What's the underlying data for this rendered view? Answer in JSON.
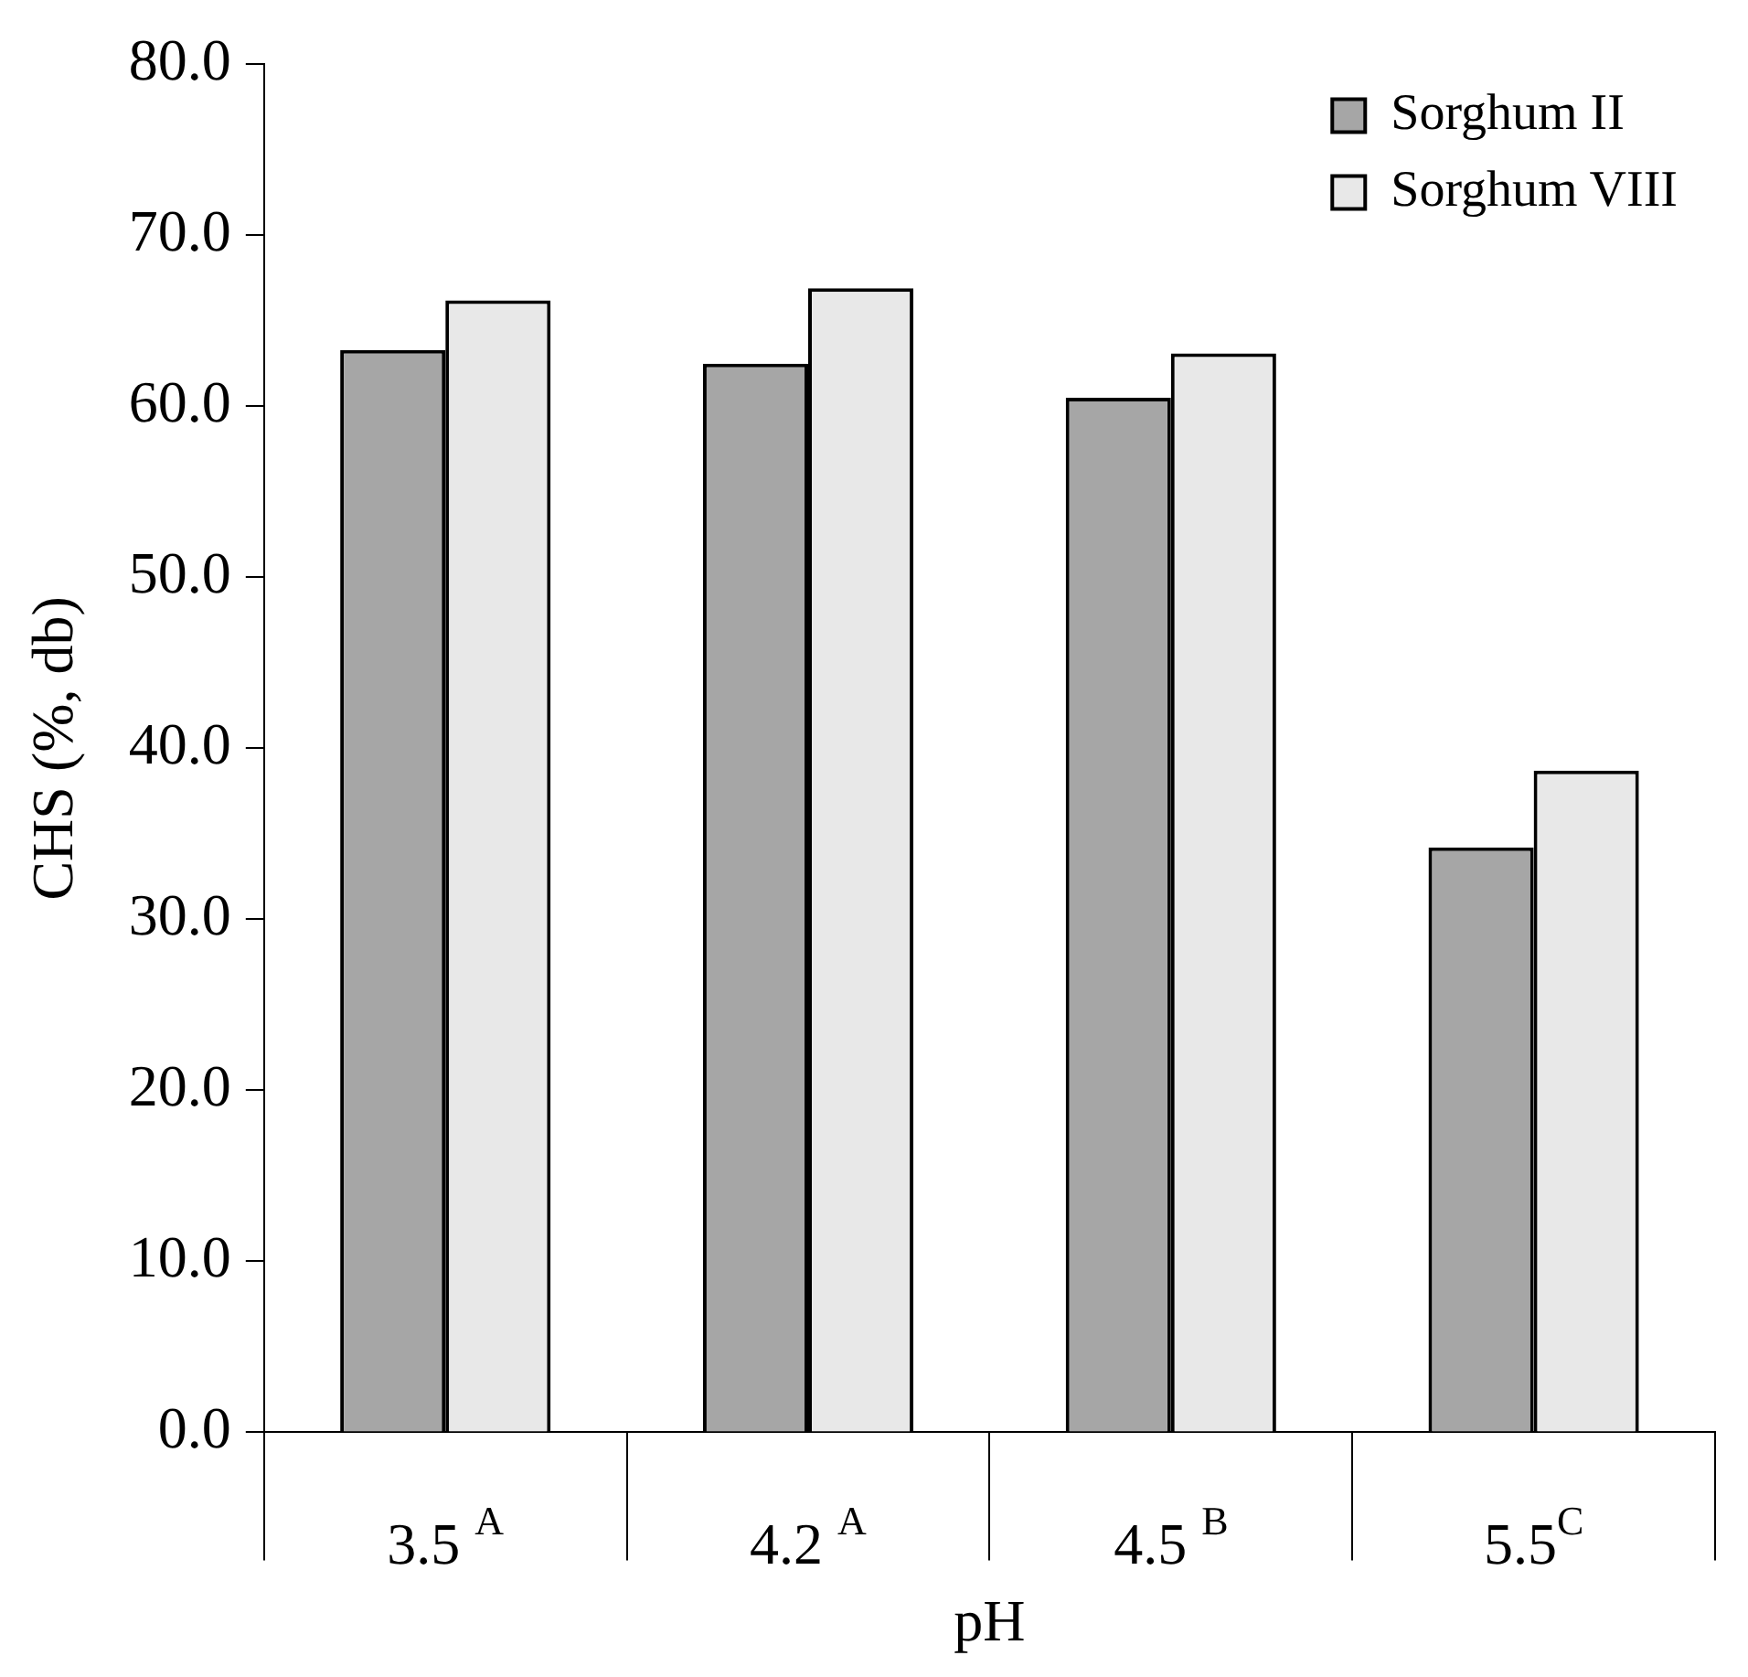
{
  "chart_data": {
    "type": "bar",
    "xlabel": "pH",
    "ylabel": "CHS (%, db)",
    "categories": [
      "3.5 $^{A}$",
      "4.2 $^{A}$",
      "4.5 $^{B}$",
      "5.5$^{C}$"
    ],
    "series": [
      {
        "name": "Sorghum II",
        "color": "#a6a6a6",
        "values": [
          63.3,
          62.5,
          60.5,
          34.2
        ]
      },
      {
        "name": "Sorghum VIII",
        "color": "#e8e8e8",
        "values": [
          66.2,
          66.9,
          63.1,
          38.7
        ]
      }
    ],
    "ylim": [
      0,
      80
    ],
    "yticks": [
      {
        "value": 0,
        "label": "0.0"
      },
      {
        "value": 10,
        "label": "10.0"
      },
      {
        "value": 20,
        "label": "20.0"
      },
      {
        "value": 30,
        "label": "30.0"
      },
      {
        "value": 40,
        "label": "40.0"
      },
      {
        "value": 50,
        "label": "50.0"
      },
      {
        "value": 60,
        "label": "60.0"
      },
      {
        "value": 70,
        "label": "70.0"
      },
      {
        "value": 80,
        "label": "80.0"
      }
    ],
    "grid": false,
    "legend": "top right"
  }
}
